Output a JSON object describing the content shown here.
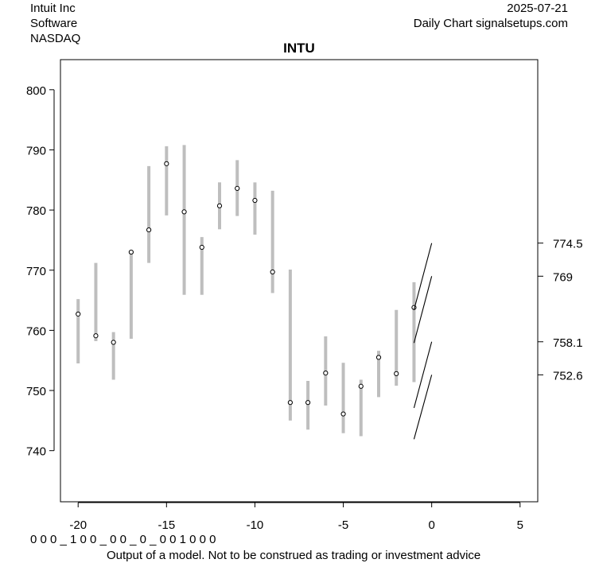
{
  "header": {
    "company": "Intuit Inc",
    "sector": "Software",
    "exchange": "NASDAQ",
    "date": "2025-07-21",
    "source": "Daily Chart signalsetups.com"
  },
  "footer": {
    "signal_code": "0 0 0 _ 1 0 0 _ 0 0 _ 0 _ 0 0 1 0 0 0",
    "disclaimer": "Output of a model. Not to be construed as trading or investment advice"
  },
  "chart_data": {
    "type": "range",
    "title": "INTU",
    "xlabel": "",
    "ylabel": "",
    "xlim": [
      -21,
      6
    ],
    "ylim": [
      731.5,
      805
    ],
    "x_ticks": [
      -20,
      -15,
      -10,
      -5,
      0,
      5
    ],
    "x_tick_labels": [
      "-20",
      "-15",
      "-10",
      "-5",
      "0",
      "5"
    ],
    "y_ticks": [
      740,
      750,
      760,
      770,
      780,
      790,
      800
    ],
    "y_tick_labels": [
      "740",
      "750",
      "760",
      "770",
      "780",
      "790",
      "800"
    ],
    "grid": false,
    "colors": {
      "bars": "#bebebe",
      "points": "#000000",
      "projections": "#000000"
    },
    "bars": [
      {
        "x": -20,
        "low": 754.5,
        "high": 765.2,
        "close": 762.7
      },
      {
        "x": -19,
        "low": 758.2,
        "high": 771.2,
        "close": 759.1
      },
      {
        "x": -18,
        "low": 751.8,
        "high": 759.7,
        "close": 758.0
      },
      {
        "x": -17,
        "low": 758.6,
        "high": 773.3,
        "close": 773.0
      },
      {
        "x": -16,
        "low": 771.2,
        "high": 787.3,
        "close": 776.7
      },
      {
        "x": -15,
        "low": 779.1,
        "high": 790.6,
        "close": 787.7
      },
      {
        "x": -14,
        "low": 765.9,
        "high": 790.8,
        "close": 779.7
      },
      {
        "x": -13,
        "low": 765.9,
        "high": 775.5,
        "close": 773.8
      },
      {
        "x": -12,
        "low": 776.8,
        "high": 784.6,
        "close": 780.7
      },
      {
        "x": -11,
        "low": 779.0,
        "high": 788.3,
        "close": 783.6
      },
      {
        "x": -10,
        "low": 775.9,
        "high": 784.6,
        "close": 781.6
      },
      {
        "x": -9,
        "low": 766.2,
        "high": 783.2,
        "close": 769.7
      },
      {
        "x": -8,
        "low": 745.0,
        "high": 770.1,
        "close": 748.0
      },
      {
        "x": -7,
        "low": 743.5,
        "high": 751.6,
        "close": 748.0
      },
      {
        "x": -6,
        "low": 747.5,
        "high": 759.0,
        "close": 752.9
      },
      {
        "x": -5,
        "low": 742.9,
        "high": 754.6,
        "close": 746.1
      },
      {
        "x": -4,
        "low": 742.4,
        "high": 751.8,
        "close": 750.7
      },
      {
        "x": -3,
        "low": 748.9,
        "high": 756.6,
        "close": 755.5
      },
      {
        "x": -2,
        "low": 750.8,
        "high": 763.4,
        "close": 752.8
      },
      {
        "x": -1,
        "low": 751.4,
        "high": 768.0,
        "close": 763.8
      }
    ],
    "projections": [
      {
        "x0": -1,
        "y0": 763.4,
        "x1": 0,
        "y1": 774.5
      },
      {
        "x0": -1,
        "y0": 757.9,
        "x1": 0,
        "y1": 769.0
      },
      {
        "x0": -1,
        "y0": 747.1,
        "x1": 0,
        "y1": 758.1
      },
      {
        "x0": -1,
        "y0": 741.9,
        "x1": 0,
        "y1": 752.6
      }
    ],
    "levels": [
      774.5,
      769.0,
      758.1,
      752.6
    ],
    "level_labels": [
      "774.5",
      "769",
      "758.1",
      "752.6"
    ]
  }
}
